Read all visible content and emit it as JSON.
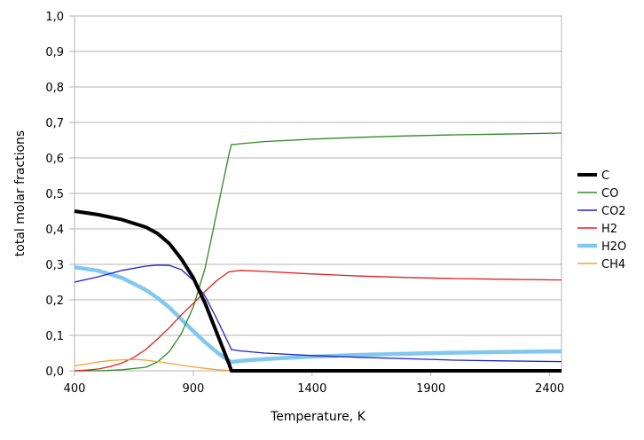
{
  "chart_data": {
    "type": "line",
    "title": "",
    "xlabel": "Temperature, K",
    "ylabel": "total molar fractions",
    "xlim": [
      400,
      2450
    ],
    "ylim": [
      0,
      1
    ],
    "x_ticks": [
      400,
      900,
      1400,
      1900,
      2400
    ],
    "x_tick_labels": [
      "400",
      "900",
      "1400",
      "1900",
      "2400"
    ],
    "y_ticks": [
      0,
      0.1,
      0.2,
      0.3,
      0.4,
      0.5,
      0.6,
      0.7,
      0.8,
      0.9,
      1.0
    ],
    "y_tick_labels": [
      "0,0",
      "0,1",
      "0,2",
      "0,3",
      "0,4",
      "0,5",
      "0,6",
      "0,7",
      "0,8",
      "0,9",
      "1,0"
    ],
    "grid": "horizontal",
    "legend_position": "right",
    "series": [
      {
        "name": "C",
        "color": "#000000",
        "width": 4,
        "x": [
          400,
          500,
          600,
          700,
          750,
          800,
          850,
          900,
          950,
          1000,
          1050,
          1060,
          1100,
          1200,
          1400,
          1600,
          1800,
          2000,
          2200,
          2450
        ],
        "y": [
          0.45,
          0.44,
          0.426,
          0.405,
          0.387,
          0.358,
          0.315,
          0.262,
          0.19,
          0.105,
          0.02,
          0.0,
          0.0,
          0.0,
          0.0,
          0.0,
          0.0,
          0.0,
          0.0,
          0.0
        ]
      },
      {
        "name": "CO",
        "color": "#2e8b22",
        "width": 1.3,
        "x": [
          400,
          500,
          600,
          700,
          750,
          800,
          850,
          900,
          950,
          1000,
          1050,
          1060,
          1100,
          1200,
          1400,
          1600,
          1800,
          2000,
          2200,
          2450
        ],
        "y": [
          0.0,
          0.0,
          0.003,
          0.01,
          0.025,
          0.055,
          0.105,
          0.18,
          0.29,
          0.45,
          0.61,
          0.637,
          0.64,
          0.646,
          0.653,
          0.658,
          0.662,
          0.665,
          0.667,
          0.67
        ]
      },
      {
        "name": "CO2",
        "color": "#2020cc",
        "width": 1.3,
        "x": [
          400,
          500,
          600,
          700,
          750,
          800,
          850,
          900,
          950,
          1000,
          1050,
          1060,
          1100,
          1200,
          1400,
          1600,
          1800,
          2000,
          2200,
          2450
        ],
        "y": [
          0.25,
          0.265,
          0.283,
          0.295,
          0.298,
          0.297,
          0.285,
          0.255,
          0.21,
          0.145,
          0.075,
          0.06,
          0.056,
          0.05,
          0.043,
          0.038,
          0.034,
          0.03,
          0.028,
          0.026
        ]
      },
      {
        "name": "H2",
        "color": "#e02020",
        "width": 1.3,
        "x": [
          400,
          450,
          500,
          550,
          600,
          650,
          700,
          750,
          800,
          850,
          900,
          950,
          1000,
          1050,
          1100,
          1200,
          1400,
          1600,
          1800,
          2000,
          2200,
          2450
        ],
        "y": [
          0.0,
          0.002,
          0.005,
          0.012,
          0.022,
          0.038,
          0.06,
          0.09,
          0.122,
          0.158,
          0.19,
          0.224,
          0.255,
          0.279,
          0.283,
          0.28,
          0.273,
          0.267,
          0.263,
          0.26,
          0.258,
          0.256
        ]
      },
      {
        "name": "H2O",
        "color": "#80c8f0",
        "width": 4.5,
        "x": [
          400,
          500,
          600,
          700,
          750,
          800,
          850,
          900,
          950,
          1000,
          1050,
          1060,
          1100,
          1200,
          1400,
          1600,
          1800,
          2000,
          2200,
          2450
        ],
        "y": [
          0.292,
          0.282,
          0.262,
          0.228,
          0.205,
          0.178,
          0.145,
          0.112,
          0.08,
          0.052,
          0.028,
          0.025,
          0.028,
          0.033,
          0.04,
          0.045,
          0.048,
          0.051,
          0.053,
          0.055
        ]
      },
      {
        "name": "CH4",
        "color": "#f5a030",
        "width": 1.3,
        "x": [
          400,
          450,
          500,
          550,
          600,
          650,
          700,
          750,
          800,
          850,
          900,
          950,
          1000,
          1050,
          1060,
          1200,
          1400,
          1800,
          2450
        ],
        "y": [
          0.014,
          0.019,
          0.025,
          0.029,
          0.031,
          0.032,
          0.03,
          0.026,
          0.021,
          0.016,
          0.011,
          0.007,
          0.003,
          0.001,
          0.0,
          0.0,
          0.0,
          0.0,
          0.0
        ]
      }
    ]
  }
}
